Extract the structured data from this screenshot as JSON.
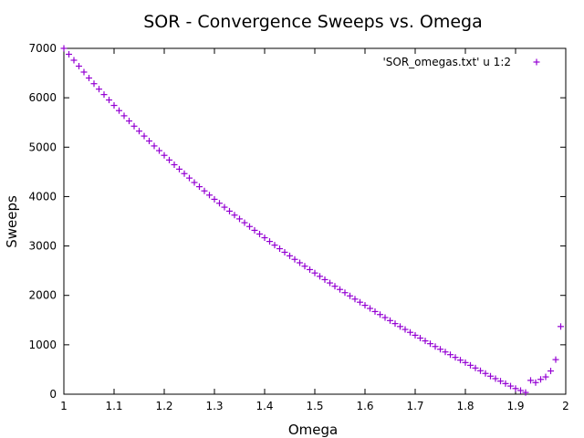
{
  "chart_data": {
    "type": "scatter",
    "title": "SOR - Convergence Sweeps vs. Omega",
    "xlabel": "Omega",
    "ylabel": "Sweeps",
    "xlim": [
      1,
      2
    ],
    "ylim": [
      0,
      7000
    ],
    "xticks": [
      "1",
      "1.1",
      "1.2",
      "1.3",
      "1.4",
      "1.5",
      "1.6",
      "1.7",
      "1.8",
      "1.9",
      "2"
    ],
    "yticks": [
      "0",
      "1000",
      "2000",
      "3000",
      "4000",
      "5000",
      "6000",
      "7000"
    ],
    "grid": false,
    "legend_position": "top-right",
    "marker": "plus",
    "color": "#9400d3",
    "series": [
      {
        "name": "'SOR_omegas.txt' u 1:2",
        "x": [
          1.0,
          1.01,
          1.02,
          1.03,
          1.04,
          1.05,
          1.06,
          1.07,
          1.08,
          1.09,
          1.1,
          1.11,
          1.12,
          1.13,
          1.14,
          1.15,
          1.16,
          1.17,
          1.18,
          1.19,
          1.2,
          1.21,
          1.22,
          1.23,
          1.24,
          1.25,
          1.26,
          1.27,
          1.28,
          1.29,
          1.3,
          1.31,
          1.32,
          1.33,
          1.34,
          1.35,
          1.36,
          1.37,
          1.38,
          1.39,
          1.4,
          1.41,
          1.42,
          1.43,
          1.44,
          1.45,
          1.46,
          1.47,
          1.48,
          1.49,
          1.5,
          1.51,
          1.52,
          1.53,
          1.54,
          1.55,
          1.56,
          1.57,
          1.58,
          1.59,
          1.6,
          1.61,
          1.62,
          1.63,
          1.64,
          1.65,
          1.66,
          1.67,
          1.68,
          1.69,
          1.7,
          1.71,
          1.72,
          1.73,
          1.74,
          1.75,
          1.76,
          1.77,
          1.78,
          1.79,
          1.8,
          1.81,
          1.82,
          1.83,
          1.84,
          1.85,
          1.86,
          1.87,
          1.88,
          1.89,
          1.9,
          1.91,
          1.92,
          1.93,
          1.94,
          1.95,
          1.96,
          1.97,
          1.98,
          1.99
        ],
        "y": [
          7000,
          6880,
          6760,
          6640,
          6520,
          6400,
          6285,
          6175,
          6065,
          5955,
          5845,
          5740,
          5635,
          5530,
          5425,
          5325,
          5225,
          5125,
          5025,
          4930,
          4835,
          4740,
          4645,
          4555,
          4465,
          4375,
          4285,
          4200,
          4115,
          4030,
          3945,
          3865,
          3785,
          3705,
          3625,
          3548,
          3471,
          3394,
          3317,
          3242,
          3167,
          3092,
          3017,
          2945,
          2873,
          2801,
          2729,
          2660,
          2591,
          2522,
          2453,
          2386,
          2319,
          2252,
          2185,
          2120,
          2055,
          1990,
          1925,
          1862,
          1799,
          1736,
          1673,
          1612,
          1551,
          1490,
          1429,
          1370,
          1311,
          1252,
          1193,
          1136,
          1079,
          1022,
          965,
          910,
          855,
          800,
          745,
          690,
          640,
          585,
          530,
          475,
          420,
          365,
          315,
          265,
          215,
          165,
          115,
          75,
          35,
          280,
          235,
          300,
          350,
          470,
          700,
          1370
        ]
      }
    ]
  }
}
